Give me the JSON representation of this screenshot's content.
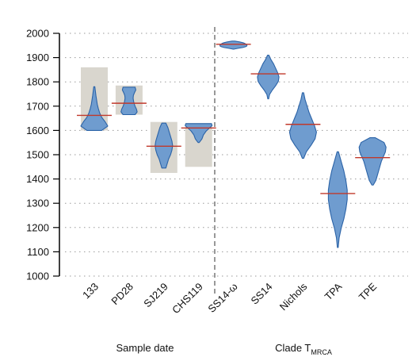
{
  "chart_data": {
    "type": "violin",
    "title": "",
    "xlabel": "",
    "ylabel": "",
    "ylim": [
      1000,
      2000
    ],
    "yticks": [
      1000,
      1100,
      1200,
      1300,
      1400,
      1500,
      1600,
      1700,
      1800,
      1900,
      2000
    ],
    "grid": "horizontal dotted",
    "categories": [
      "133",
      "PD28",
      "SJ219",
      "CHS119",
      "SS14-ω",
      "SS14",
      "Nichols",
      "TPA",
      "TPE"
    ],
    "groups": [
      {
        "label": "Sample date",
        "categories": [
          "133",
          "PD28",
          "SJ219",
          "CHS119"
        ]
      },
      {
        "label_main": "Clade T",
        "label_sub": "MRCA",
        "categories": [
          "SS14-ω",
          "SS14",
          "Nichols",
          "TPA",
          "TPE"
        ]
      }
    ],
    "sample_date_ranges": [
      {
        "category": "133",
        "low": 1600,
        "high": 1860
      },
      {
        "category": "PD28",
        "low": 1665,
        "high": 1785
      },
      {
        "category": "SJ219",
        "low": 1425,
        "high": 1635
      },
      {
        "category": "CHS119",
        "low": 1450,
        "high": 1630
      }
    ],
    "median": [
      1662,
      1712,
      1535,
      1610,
      1955,
      1833,
      1625,
      1340,
      1488
    ],
    "distributions": [
      {
        "category": "133",
        "min": 1600,
        "max": 1780,
        "density": [
          0.55,
          1.0,
          0.8,
          0.55,
          0.4,
          0.3,
          0.22,
          0.17,
          0.12,
          0.08,
          0.04
        ]
      },
      {
        "category": "PD28",
        "min": 1665,
        "max": 1778,
        "density": [
          0.45,
          0.6,
          0.55,
          0.45,
          0.38,
          0.33,
          0.3,
          0.32,
          0.4,
          0.5,
          0.45
        ]
      },
      {
        "category": "SJ219",
        "min": 1445,
        "max": 1630,
        "density": [
          0.15,
          0.25,
          0.35,
          0.5,
          0.6,
          0.65,
          0.6,
          0.5,
          0.4,
          0.3,
          0.15
        ]
      },
      {
        "category": "CHS119",
        "min": 1550,
        "max": 1628,
        "density": [
          0.04,
          0.15,
          0.25,
          0.3,
          0.35,
          0.45,
          0.55,
          0.7,
          0.85,
          1.0,
          0.95
        ]
      },
      {
        "category": "SS14-ω",
        "min": 1935,
        "max": 1968,
        "density": [
          0.05,
          0.35,
          0.7,
          0.9,
          1.0,
          1.0,
          0.95,
          0.85,
          0.7,
          0.45,
          0.1
        ]
      },
      {
        "category": "SS14",
        "min": 1730,
        "max": 1910,
        "density": [
          0.03,
          0.1,
          0.3,
          0.55,
          0.75,
          0.8,
          0.7,
          0.55,
          0.4,
          0.2,
          0.05
        ]
      },
      {
        "category": "Nichols",
        "min": 1485,
        "max": 1755,
        "density": [
          0.05,
          0.25,
          0.6,
          0.9,
          1.0,
          0.85,
          0.65,
          0.45,
          0.3,
          0.15,
          0.05
        ]
      },
      {
        "category": "TPA",
        "min": 1118,
        "max": 1512,
        "density": [
          0.03,
          0.1,
          0.25,
          0.45,
          0.6,
          0.7,
          0.7,
          0.6,
          0.45,
          0.25,
          0.05
        ]
      },
      {
        "category": "TPE",
        "min": 1375,
        "max": 1570,
        "density": [
          0.05,
          0.25,
          0.35,
          0.45,
          0.55,
          0.65,
          0.8,
          0.95,
          1.0,
          0.85,
          0.2
        ]
      }
    ],
    "colors": {
      "violin_fill": "#6f9ccf",
      "violin_stroke": "#2b63a7",
      "median_line": "#c0392b",
      "range_box": "#d9d6ce",
      "divider": "#555555"
    }
  }
}
